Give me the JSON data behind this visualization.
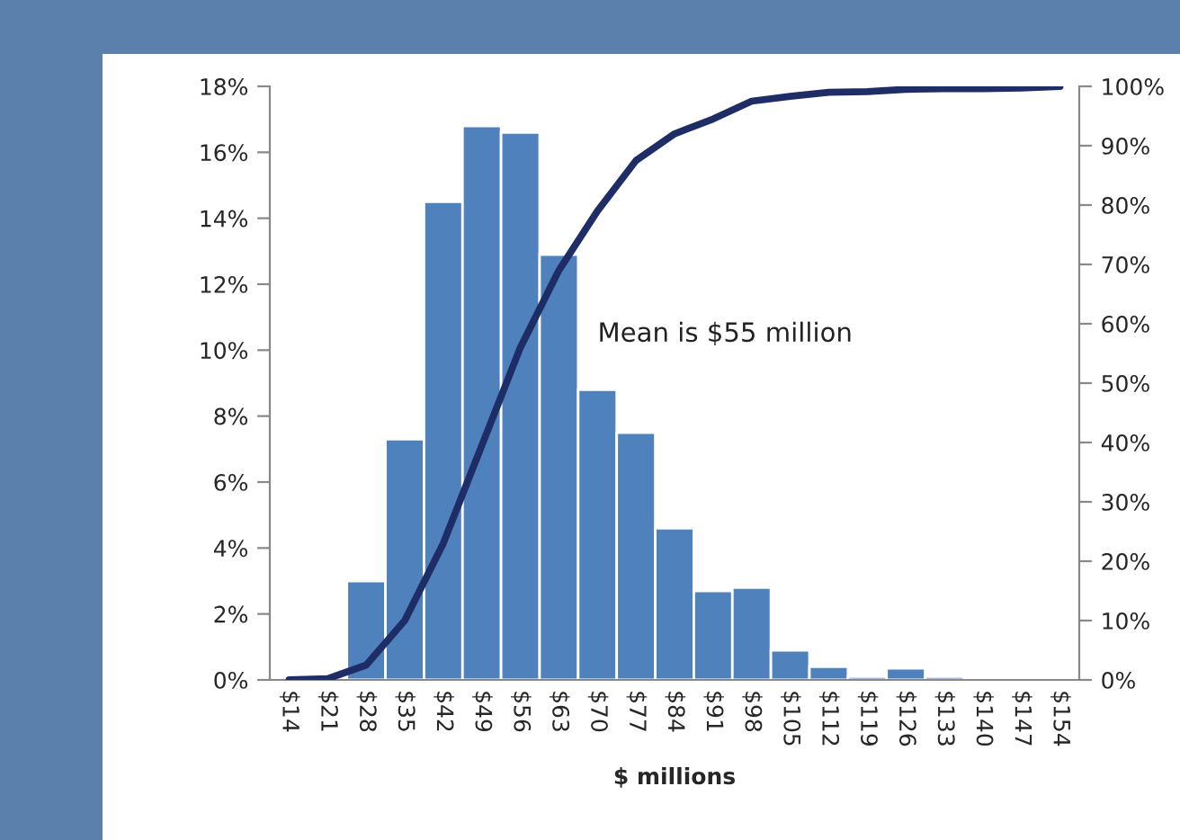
{
  "chart_data": {
    "type": "bar",
    "xlabel": "$ millions",
    "categories": [
      "$14",
      "$21",
      "$28",
      "$35",
      "$42",
      "$49",
      "$56",
      "$63",
      "$70",
      "$77",
      "$84",
      "$91",
      "$98",
      "$105",
      "$112",
      "$119",
      "$126",
      "$133",
      "$140",
      "$147",
      "$154"
    ],
    "series": [
      {
        "color": "#4f81bd",
        "values": [
          null,
          null,
          3.0,
          7.3,
          14.5,
          16.8,
          16.6,
          12.9,
          8.8,
          7.5,
          4.6,
          2.7,
          2.8,
          0.9,
          0.4,
          0.1,
          0.35,
          0.1,
          null,
          null,
          null
        ]
      },
      {
        "type": "line",
        "axis": "y2",
        "color": "#1f2d66",
        "values": [
          0,
          0.2,
          2.5,
          10,
          23,
          39.5,
          56,
          69,
          79,
          87.5,
          92,
          94.5,
          97.5,
          98.3,
          99,
          99.1,
          99.5,
          99.6,
          99.6,
          99.7,
          100
        ]
      }
    ],
    "ylim": [
      0,
      18
    ],
    "yticks": [
      {
        "value": 0,
        "label": "0%"
      },
      {
        "value": 2,
        "label": "2%"
      },
      {
        "value": 4,
        "label": "4%"
      },
      {
        "value": 6,
        "label": "6%"
      },
      {
        "value": 8,
        "label": "8%"
      },
      {
        "value": 10,
        "label": "10%"
      },
      {
        "value": 12,
        "label": "12%"
      },
      {
        "value": 14,
        "label": "14%"
      },
      {
        "value": 16,
        "label": "16%"
      },
      {
        "value": 18,
        "label": "18%"
      }
    ],
    "y2lim": [
      0,
      100
    ],
    "y2ticks": [
      {
        "value": 0,
        "label": "0%"
      },
      {
        "value": 10,
        "label": "10%"
      },
      {
        "value": 20,
        "label": "20%"
      },
      {
        "value": 30,
        "label": "30%"
      },
      {
        "value": 40,
        "label": "40%"
      },
      {
        "value": 50,
        "label": "50%"
      },
      {
        "value": 60,
        "label": "60%"
      },
      {
        "value": 70,
        "label": "70%"
      },
      {
        "value": 80,
        "label": "80%"
      },
      {
        "value": 90,
        "label": "90%"
      },
      {
        "value": 100,
        "label": "100%"
      }
    ],
    "annotations": [
      "Mean is $55 million"
    ],
    "grid": false,
    "legend": false,
    "marker": "none",
    "line_style": "solid"
  }
}
